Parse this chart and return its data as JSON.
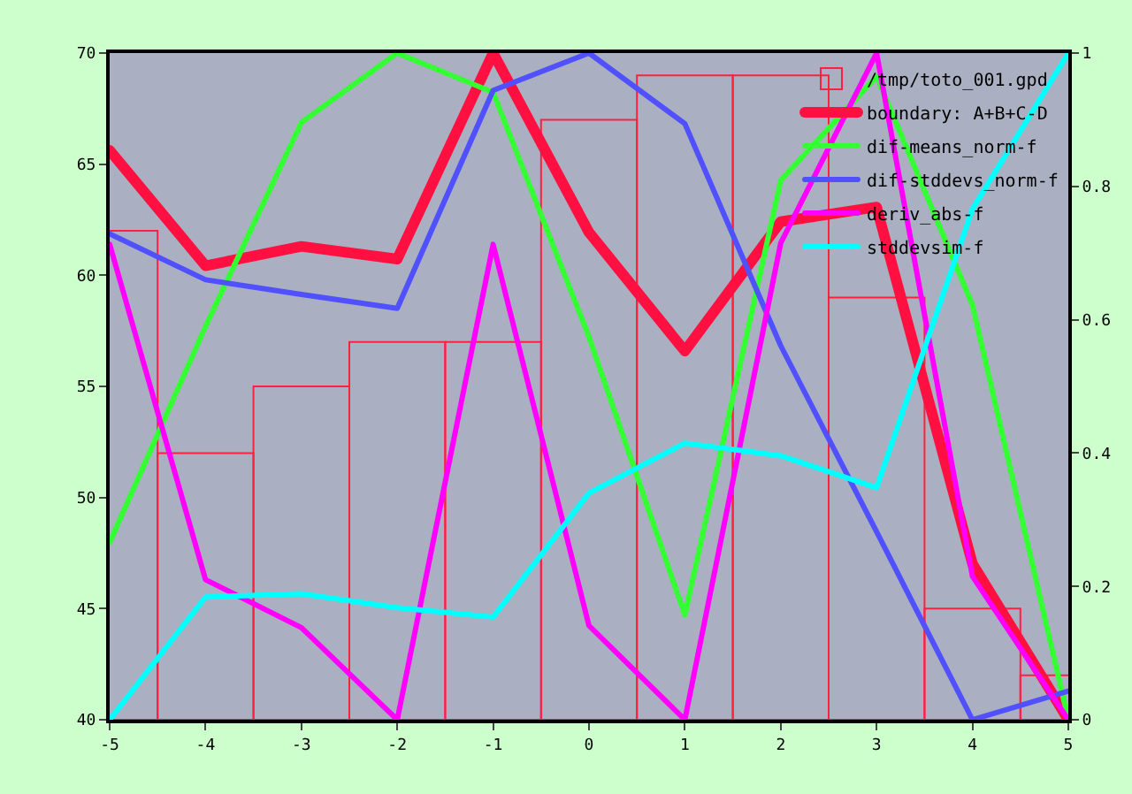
{
  "chart_data": {
    "type": "line",
    "x": [
      -5,
      -4,
      -3,
      -2,
      -1,
      0,
      1,
      2,
      3,
      4,
      5
    ],
    "series": [
      {
        "name": "/tmp/toto_001.gpd",
        "type": "bar",
        "color": "#ff2040",
        "values": [
          62,
          52,
          55,
          57,
          57,
          67,
          69,
          69,
          59,
          45,
          42
        ]
      },
      {
        "name": "boundary: A+B+C-D",
        "color": "#ff1040",
        "axis": "y2",
        "values": [
          0.854,
          0.681,
          0.71,
          0.691,
          1.0,
          0.731,
          0.553,
          0.747,
          0.769,
          0.234,
          0.0
        ]
      },
      {
        "name": "dif-means_norm-f",
        "color": "#33ff33",
        "axis": "y2",
        "values": [
          0.266,
          0.59,
          0.896,
          1.0,
          0.941,
          0.574,
          0.157,
          0.809,
          0.965,
          0.622,
          0.0
        ]
      },
      {
        "name": "dif-stddevs_norm-f",
        "color": "#5050ff",
        "axis": "y2",
        "values": [
          0.729,
          0.66,
          0.638,
          0.617,
          0.944,
          1.0,
          0.894,
          0.561,
          0.282,
          0.0,
          0.043
        ]
      },
      {
        "name": "deriv_abs-f",
        "color": "#ff00ff",
        "axis": "y2",
        "values": [
          0.713,
          0.21,
          0.138,
          0.0,
          0.713,
          0.141,
          0.0,
          0.715,
          1.0,
          0.215,
          0.0
        ]
      },
      {
        "name": "stddevsim-f",
        "color": "#00ffff",
        "axis": "y2",
        "values": [
          0.0,
          0.184,
          0.189,
          0.168,
          0.154,
          0.34,
          0.415,
          0.396,
          0.348,
          0.766,
          1.0
        ]
      }
    ],
    "xlim": [
      -5,
      5
    ],
    "xticks": [
      -5,
      -4,
      -3,
      -2,
      -1,
      0,
      1,
      2,
      3,
      4,
      5
    ],
    "ylim": [
      40,
      70
    ],
    "yticks": [
      40,
      45,
      50,
      55,
      60,
      65,
      70
    ],
    "y2lim": [
      0,
      1
    ],
    "y2ticks": [
      0,
      0.2,
      0.4,
      0.6,
      0.8,
      1
    ],
    "grid": false,
    "legend": "top right",
    "marker": "none",
    "line_style": "solid"
  }
}
